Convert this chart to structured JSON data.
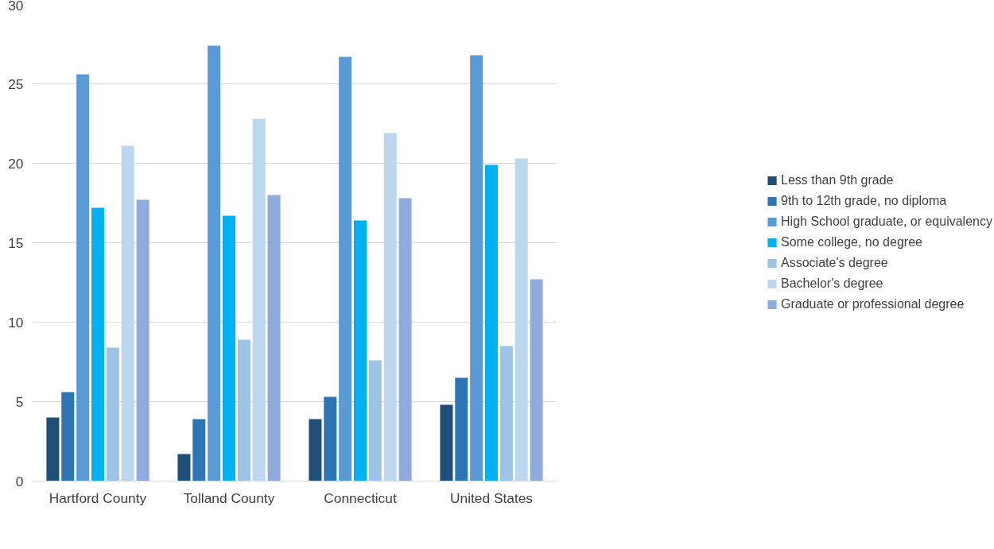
{
  "chart_data": {
    "type": "bar",
    "categories": [
      "Hartford County",
      "Tolland County",
      "Connecticut",
      "United States"
    ],
    "series": [
      {
        "name": "Less than 9th grade",
        "color": "#1f4e79",
        "values": [
          4.0,
          1.7,
          3.9,
          4.8
        ]
      },
      {
        "name": "9th to 12th grade, no diploma",
        "color": "#2e75b6",
        "values": [
          5.6,
          3.9,
          5.3,
          6.5
        ]
      },
      {
        "name": "High School graduate, or equivalency",
        "color": "#5b9bd5",
        "values": [
          25.6,
          27.4,
          26.7,
          26.8
        ]
      },
      {
        "name": "Some college, no degree",
        "color": "#00b0f0",
        "values": [
          17.2,
          16.7,
          16.4,
          19.9
        ]
      },
      {
        "name": "Associate's degree",
        "color": "#9dc3e6",
        "values": [
          8.4,
          8.9,
          7.6,
          8.5
        ]
      },
      {
        "name": "Bachelor's degree",
        "color": "#bdd7ee",
        "values": [
          21.1,
          22.8,
          21.9,
          20.3
        ]
      },
      {
        "name": "Graduate or professional degree",
        "color": "#8faadc",
        "values": [
          17.7,
          18.0,
          17.8,
          12.7
        ]
      }
    ],
    "ylim": [
      0,
      30
    ],
    "yticks": [
      0,
      5,
      10,
      15,
      20,
      25,
      30
    ],
    "grid": "y",
    "legend": "right"
  }
}
